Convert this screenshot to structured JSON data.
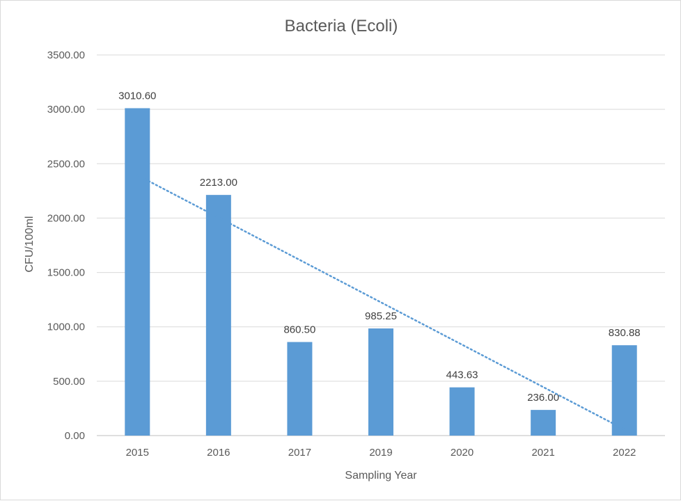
{
  "chart_data": {
    "type": "bar",
    "title": "Bacteria (Ecoli)",
    "xlabel": "Sampling Year",
    "ylabel": "CFU/100ml",
    "categories": [
      "2015",
      "2016",
      "2017",
      "2019",
      "2020",
      "2021",
      "2022"
    ],
    "values": [
      3010.6,
      2213.0,
      860.5,
      985.25,
      443.63,
      236.0,
      830.88
    ],
    "data_labels": [
      "3010.60",
      "2213.00",
      "860.50",
      "985.25",
      "443.63",
      "236.00",
      "830.88"
    ],
    "ylim": [
      0,
      3500
    ],
    "yticks": [
      "0.00",
      "500.00",
      "1000.00",
      "1500.00",
      "2000.00",
      "2500.00",
      "3000.00",
      "3500.00"
    ],
    "grid": true,
    "trendline": {
      "type": "linear",
      "style": "dotted"
    },
    "colors": {
      "bar": "#5b9bd5",
      "trendline": "#5b9bd5"
    }
  }
}
